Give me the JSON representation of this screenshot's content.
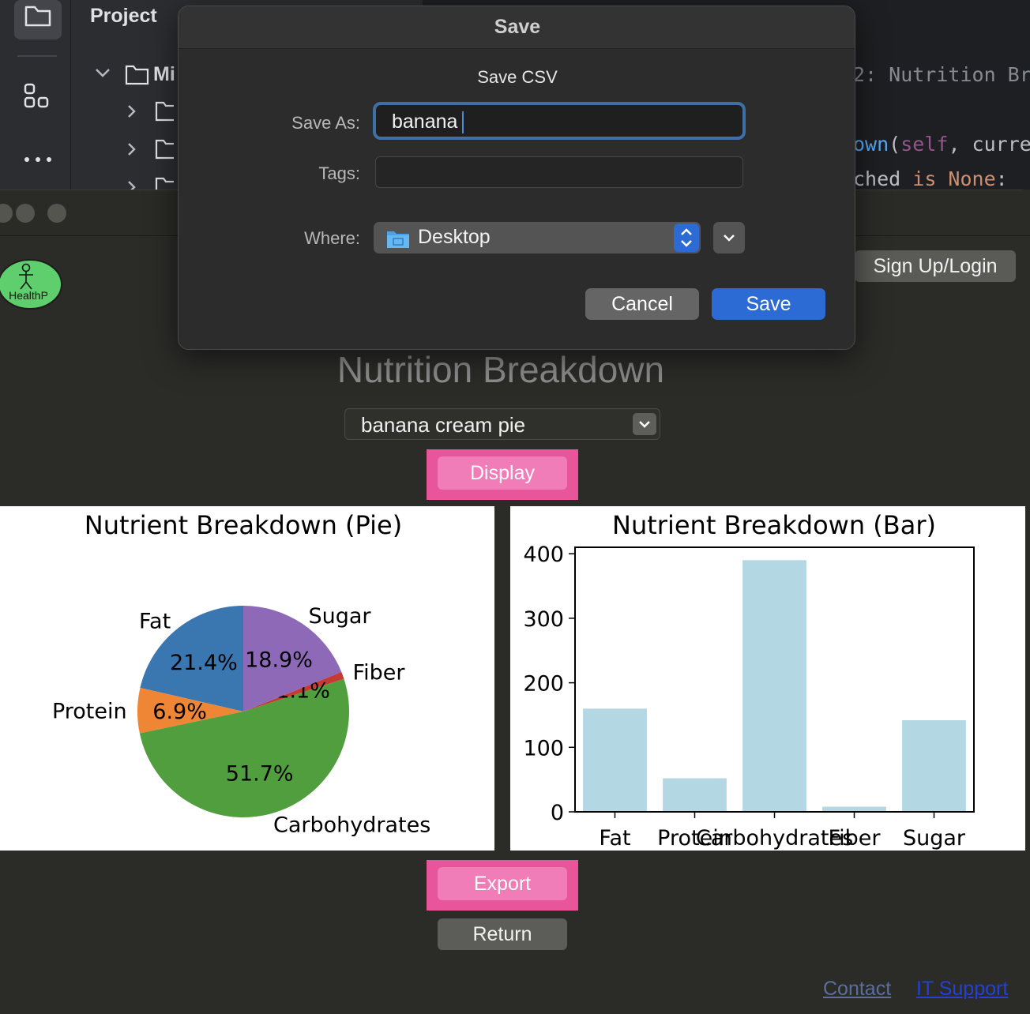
{
  "ide": {
    "panel_title": "Project",
    "tree_root": "Mi",
    "code_lines": [
      {
        "segments": [
          {
            "t": "2: Nutrition Br",
            "c": "#868a91"
          }
        ]
      },
      {
        "segments": [
          {
            "t": "own",
            "c": "#56a8f5"
          },
          {
            "t": "(",
            "c": "#bcbec4"
          },
          {
            "t": "self",
            "c": "#94558d"
          },
          {
            "t": ", curre",
            "c": "#bcbec4"
          }
        ]
      },
      {
        "segments": [
          {
            "t": "ched ",
            "c": "#bcbec4"
          },
          {
            "t": "is ",
            "c": "#cf8e6d"
          },
          {
            "t": "None",
            "c": "#cf8e6d"
          },
          {
            "t": ":",
            "c": "#bcbec4"
          }
        ]
      }
    ]
  },
  "app": {
    "logo_text": "HealthP",
    "signup_label": "Sign Up/Login",
    "page_title": "Nutrition Breakdown",
    "food_select_value": "banana cream pie",
    "display_label": "Display",
    "export_label": "Export",
    "return_label": "Return",
    "links": {
      "contact": "Contact",
      "it_support": "IT Support"
    }
  },
  "dialog": {
    "title": "Save",
    "subtitle": "Save CSV",
    "save_as_label": "Save As:",
    "save_as_value": "banana",
    "tags_label": "Tags:",
    "tags_value": "",
    "where_label": "Where:",
    "where_value": "Desktop",
    "cancel_label": "Cancel",
    "save_label": "Save"
  },
  "colors": {
    "pink_accent": "#e8559a",
    "pink_button": "#f07cb8",
    "dialog_blue": "#2d6bd4"
  },
  "chart_data": [
    {
      "type": "pie",
      "title": "Nutrient Breakdown (Pie)",
      "categories": [
        "Fat",
        "Protein",
        "Carbohydrates",
        "Fiber",
        "Sugar"
      ],
      "values": [
        21.4,
        6.9,
        51.7,
        1.1,
        18.9
      ],
      "labels": [
        "21.4%",
        "6.9%",
        "51.7%",
        "1.1%",
        "18.9%"
      ],
      "colors": [
        "#3a76af",
        "#ef8636",
        "#519e3e",
        "#c53a32",
        "#8d69b8"
      ]
    },
    {
      "type": "bar",
      "title": "Nutrient Breakdown (Bar)",
      "categories": [
        "Fat",
        "Protein",
        "Carbohydrates",
        "Fiber",
        "Sugar"
      ],
      "values": [
        160,
        52,
        390,
        8,
        142
      ],
      "ylim": [
        0,
        410
      ],
      "yticks": [
        0,
        100,
        200,
        300,
        400
      ],
      "color": "#b4d7e4",
      "grid": false
    }
  ]
}
